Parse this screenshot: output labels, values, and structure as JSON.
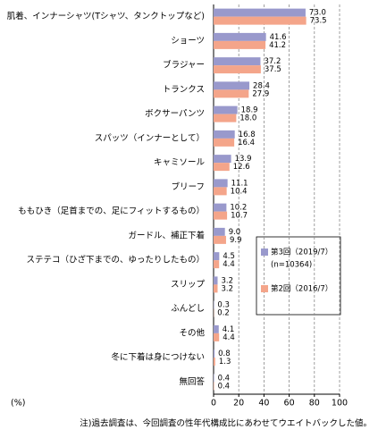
{
  "chart_data": {
    "type": "barh",
    "categories": [
      "肌着、インナーシャツ(Tシャツ、タンクトップなど)",
      "ショーツ",
      "ブラジャー",
      "トランクス",
      "ボクサーパンツ",
      "スパッツ（インナーとして）",
      "キャミソール",
      "ブリーフ",
      "ももひき（足首までの、足にフィットするもの）",
      "ガードル、補正下着",
      "ステテコ（ひざ下までの、ゆったりしたもの）",
      "スリップ",
      "ふんどし",
      "その他",
      "冬に下着は身につけない",
      "無回答"
    ],
    "series": [
      {
        "name": "第3回（2019/7）",
        "color": "#9999cc",
        "values": [
          73.0,
          41.6,
          37.2,
          28.4,
          18.9,
          16.8,
          13.9,
          11.1,
          10.2,
          9.0,
          4.5,
          3.2,
          0.3,
          4.1,
          0.8,
          0.4
        ],
        "value_labels": [
          "73.0",
          "41.6",
          "37.2",
          "28.4",
          "18.9",
          "16.8",
          "13.9",
          "11.1",
          "10.2",
          "9.0",
          "4.5",
          "3.2",
          "0.3",
          "4.1",
          "0.8",
          "0.4"
        ]
      },
      {
        "name": "第2回（2016/7）",
        "color": "#f4a58a",
        "values": [
          73.5,
          41.2,
          37.5,
          27.9,
          18.0,
          16.4,
          12.6,
          10.4,
          10.7,
          9.9,
          4.4,
          3.2,
          0.2,
          4.4,
          1.3,
          0.4
        ],
        "value_labels": [
          "73.5",
          "41.2",
          "37.5",
          "27.9",
          "18.0",
          "16.4",
          "12.6",
          "10.4",
          "10.7",
          "9.9",
          "4.4",
          "3.2",
          "0.2",
          "4.4",
          "1.3",
          "0.4"
        ]
      }
    ],
    "sample_size_label": "(n=10364)",
    "xlabel": "(%)",
    "xlim": [
      0,
      100
    ],
    "xticks": [
      0,
      20,
      40,
      60,
      80,
      100
    ],
    "grid": true,
    "note": "注)過去調査は、今回調査の性年代構成比にあわせてウエイトバックした値。"
  }
}
